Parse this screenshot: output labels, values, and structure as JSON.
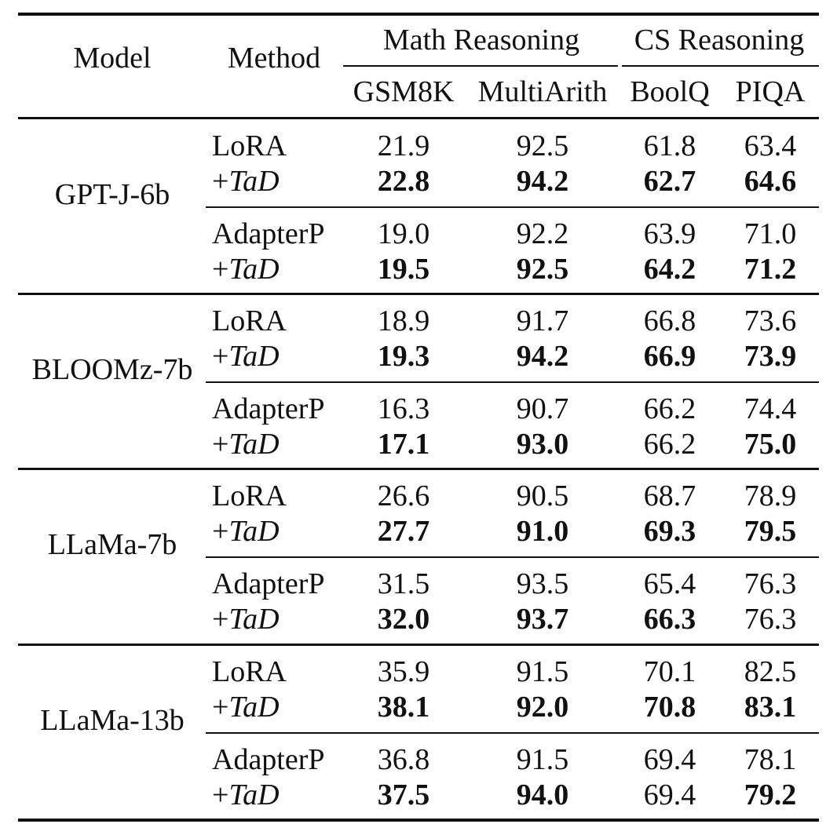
{
  "header": {
    "model": "Model",
    "method": "Method",
    "group_math": "Math Reasoning",
    "group_cs": "CS Reasoning",
    "columns": [
      "GSM8K",
      "MultiArith",
      "BoolQ",
      "PIQA"
    ]
  },
  "groups": [
    {
      "model": "GPT-J-6b",
      "blocks": [
        {
          "base": {
            "method": "LoRA",
            "values": [
              "21.9",
              "92.5",
              "61.8",
              "63.4"
            ]
          },
          "tad": {
            "prefix": "+",
            "method": "TaD",
            "values": [
              "22.8",
              "94.2",
              "62.7",
              "64.6"
            ],
            "bold": [
              true,
              true,
              true,
              true
            ]
          }
        },
        {
          "base": {
            "method": "AdapterP",
            "values": [
              "19.0",
              "92.2",
              "63.9",
              "71.0"
            ]
          },
          "tad": {
            "prefix": "+",
            "method": "TaD",
            "values": [
              "19.5",
              "92.5",
              "64.2",
              "71.2"
            ],
            "bold": [
              true,
              true,
              true,
              true
            ]
          }
        }
      ]
    },
    {
      "model": "BLOOMz-7b",
      "blocks": [
        {
          "base": {
            "method": "LoRA",
            "values": [
              "18.9",
              "91.7",
              "66.8",
              "73.6"
            ]
          },
          "tad": {
            "prefix": "+",
            "method": "TaD",
            "values": [
              "19.3",
              "94.2",
              "66.9",
              "73.9"
            ],
            "bold": [
              true,
              true,
              true,
              true
            ]
          }
        },
        {
          "base": {
            "method": "AdapterP",
            "values": [
              "16.3",
              "90.7",
              "66.2",
              "74.4"
            ]
          },
          "tad": {
            "prefix": "+",
            "method": "TaD",
            "values": [
              "17.1",
              "93.0",
              "66.2",
              "75.0"
            ],
            "bold": [
              true,
              true,
              false,
              true
            ]
          }
        }
      ]
    },
    {
      "model": "LLaMa-7b",
      "blocks": [
        {
          "base": {
            "method": "LoRA",
            "values": [
              "26.6",
              "90.5",
              "68.7",
              "78.9"
            ]
          },
          "tad": {
            "prefix": "+",
            "method": "TaD",
            "values": [
              "27.7",
              "91.0",
              "69.3",
              "79.5"
            ],
            "bold": [
              true,
              true,
              true,
              true
            ]
          }
        },
        {
          "base": {
            "method": "AdapterP",
            "values": [
              "31.5",
              "93.5",
              "65.4",
              "76.3"
            ]
          },
          "tad": {
            "prefix": "+",
            "method": "TaD",
            "values": [
              "32.0",
              "93.7",
              "66.3",
              "76.3"
            ],
            "bold": [
              true,
              true,
              true,
              false
            ]
          }
        }
      ]
    },
    {
      "model": "LLaMa-13b",
      "blocks": [
        {
          "base": {
            "method": "LoRA",
            "values": [
              "35.9",
              "91.5",
              "70.1",
              "82.5"
            ]
          },
          "tad": {
            "prefix": "+",
            "method": "TaD",
            "values": [
              "38.1",
              "92.0",
              "70.8",
              "83.1"
            ],
            "bold": [
              true,
              true,
              true,
              true
            ]
          }
        },
        {
          "base": {
            "method": "AdapterP",
            "values": [
              "36.8",
              "91.5",
              "69.4",
              "78.1"
            ]
          },
          "tad": {
            "prefix": "+",
            "method": "TaD",
            "values": [
              "37.5",
              "94.0",
              "69.4",
              "79.2"
            ],
            "bold": [
              true,
              true,
              false,
              true
            ]
          }
        }
      ]
    }
  ]
}
